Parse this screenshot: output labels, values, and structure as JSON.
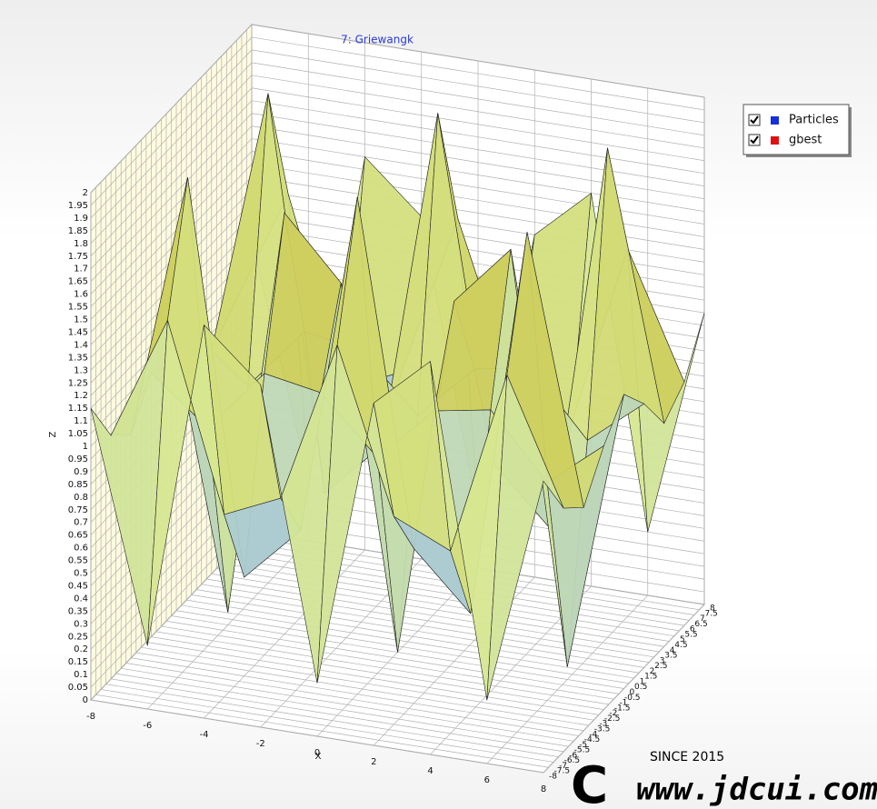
{
  "chart_data": {
    "type": "surface3d",
    "title": "7: Griewangk",
    "xlabel": "X",
    "zlabel": "Z",
    "x": [
      -8,
      -6,
      -4,
      -2,
      0,
      2,
      4,
      6,
      8
    ],
    "y": [
      -8,
      -6,
      -4,
      -2,
      0,
      2,
      4,
      6,
      8
    ],
    "z": [
      [
        1.15,
        0.25,
        1.55,
        1.35,
        0.21,
        1.35,
        1.55,
        0.25,
        1.15
      ],
      [
        0.96,
        1.45,
        0.72,
        0.82,
        1.46,
        0.82,
        0.72,
        1.45,
        0.96
      ],
      [
        0.88,
        1.93,
        0.39,
        0.61,
        1.96,
        0.61,
        0.39,
        1.93,
        0.88
      ],
      [
        1.04,
        0.86,
        1.11,
        1.07,
        0.85,
        1.07,
        1.11,
        0.86,
        1.04
      ],
      [
        1.16,
        0.05,
        1.66,
        1.42,
        0,
        1.42,
        1.66,
        0.05,
        1.16
      ],
      [
        1.04,
        0.86,
        1.11,
        1.07,
        0.85,
        1.07,
        1.11,
        0.86,
        1.04
      ],
      [
        0.88,
        1.93,
        0.39,
        0.61,
        1.96,
        0.61,
        0.39,
        1.93,
        0.88
      ],
      [
        0.96,
        1.45,
        0.72,
        0.82,
        1.46,
        0.82,
        0.72,
        1.45,
        0.96
      ],
      [
        1.15,
        0.25,
        1.55,
        1.35,
        0.21,
        1.35,
        1.55,
        0.25,
        1.15
      ]
    ],
    "xlim": [
      -8,
      8
    ],
    "ylim": [
      -8,
      8
    ],
    "zlim": [
      0,
      2
    ],
    "xticks": [
      -8,
      -6,
      -4,
      -2,
      0,
      2,
      4,
      6,
      8
    ],
    "yticks": [
      -8,
      -7.5,
      -7,
      -6.5,
      -6,
      -5.5,
      -5,
      -4.5,
      -4,
      -3.5,
      -3,
      -2.5,
      -2,
      -1.5,
      -1,
      -0.5,
      0,
      0.5,
      1,
      1.5,
      2,
      2.5,
      3,
      3.5,
      4,
      4.5,
      5,
      5.5,
      6,
      6.5,
      7,
      7.5,
      8
    ],
    "zticks": [
      0,
      0.05,
      0.1,
      0.15,
      0.2,
      0.25,
      0.3,
      0.35,
      0.4,
      0.45,
      0.5,
      0.55,
      0.6,
      0.65,
      0.7,
      0.75,
      0.8,
      0.85,
      0.9,
      0.95,
      1,
      1.05,
      1.1,
      1.15,
      1.2,
      1.25,
      1.3,
      1.35,
      1.4,
      1.45,
      1.5,
      1.55,
      1.6,
      1.65,
      1.7,
      1.75,
      1.8,
      1.85,
      1.9,
      1.95,
      2
    ],
    "legend": [
      {
        "name": "Particles",
        "color": "#1530d8"
      },
      {
        "name": "gbest",
        "color": "#e01010"
      }
    ],
    "grid": true
  },
  "watermark": {
    "since": "SINCE 2015",
    "site": "www.jdcui.com"
  }
}
